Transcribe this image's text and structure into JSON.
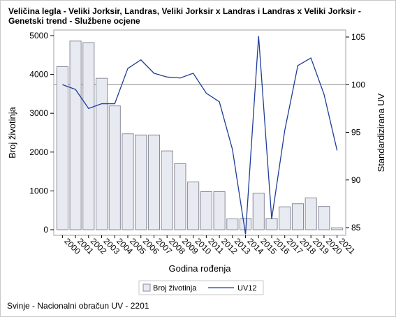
{
  "title": "Veličina legla - Veliki Jorksir, Landras, Veliki Jorksir x Landras i Landras x Veliki Jorksir - Genetski trend - Službene ocjene",
  "footer": "Svinje - Nacionalni obračun UV - 2201",
  "chart_data": {
    "type": "bar+line",
    "xlabel": "Godina rođenja",
    "ylabel_left": "Broj životinja",
    "ylabel_right": "Standardizirana UV",
    "ylim_left": [
      0,
      5000
    ],
    "ylim_right": [
      85,
      105
    ],
    "yticks_left": [
      0,
      1000,
      2000,
      3000,
      4000,
      5000
    ],
    "yticks_right": [
      85,
      90,
      95,
      100,
      105
    ],
    "reference_line_right": 100,
    "categories": [
      "2000",
      "2001",
      "2002",
      "2003",
      "2004",
      "2005",
      "2006",
      "2007",
      "2008",
      "2009",
      "2010",
      "2011",
      "2012",
      "2013",
      "2014",
      "2015",
      "2016",
      "2017",
      "2018",
      "2019",
      "2020",
      "2021"
    ],
    "series": [
      {
        "name": "Broj životinja",
        "type": "bar",
        "axis": "left",
        "color": "#e8eaf2",
        "stroke": "#8a8a9a",
        "values": [
          4200,
          4860,
          4820,
          3900,
          3190,
          2470,
          2440,
          2440,
          2030,
          1700,
          1230,
          980,
          980,
          280,
          290,
          940,
          290,
          590,
          670,
          820,
          600,
          50
        ]
      },
      {
        "name": "UV12",
        "type": "line",
        "axis": "right",
        "color": "#1f3d99",
        "values": [
          100.0,
          99.5,
          97.5,
          98.0,
          98.0,
          101.7,
          102.6,
          101.2,
          100.8,
          100.7,
          101.2,
          99.1,
          98.2,
          93.2,
          84.3,
          105.1,
          85.9,
          95.2,
          102.0,
          102.8,
          99.0,
          93.1
        ]
      }
    ],
    "legend": "bottom"
  }
}
